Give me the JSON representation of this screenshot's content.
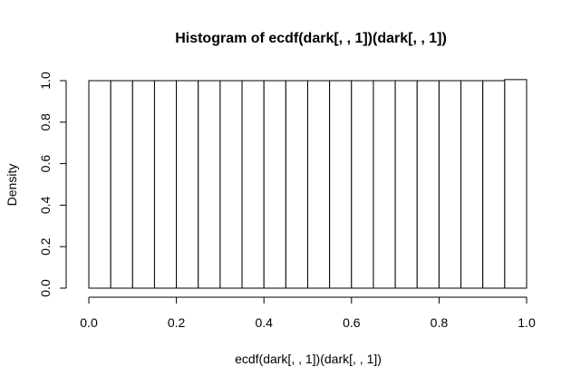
{
  "chart_data": {
    "type": "bar",
    "title": "Histogram of ecdf(dark[, , 1])(dark[, , 1])",
    "xlabel": "ecdf(dark[, , 1])(dark[, , 1])",
    "ylabel": "Density",
    "xlim": [
      0.0,
      1.0
    ],
    "ylim": [
      0.0,
      1.0
    ],
    "x_ticks": [
      "0.0",
      "0.2",
      "0.4",
      "0.6",
      "0.8",
      "1.0"
    ],
    "y_ticks": [
      "0.0",
      "0.2",
      "0.4",
      "0.6",
      "0.8",
      "1.0"
    ],
    "bin_edges": [
      0.0,
      0.05,
      0.1,
      0.15,
      0.2,
      0.25,
      0.3,
      0.35,
      0.4,
      0.45,
      0.5,
      0.55,
      0.6,
      0.65,
      0.7,
      0.75,
      0.8,
      0.85,
      0.9,
      0.95,
      1.0
    ],
    "values": [
      1.0,
      1.0,
      1.0,
      1.0,
      1.0,
      1.0,
      1.0,
      1.0,
      1.0,
      1.0,
      1.0,
      1.0,
      1.0,
      1.0,
      1.0,
      1.0,
      1.0,
      1.0,
      1.0,
      1.005
    ],
    "grid": false,
    "colors": {
      "bar_fill": "#ffffff",
      "bar_stroke": "#000000",
      "axis": "#000000"
    }
  }
}
